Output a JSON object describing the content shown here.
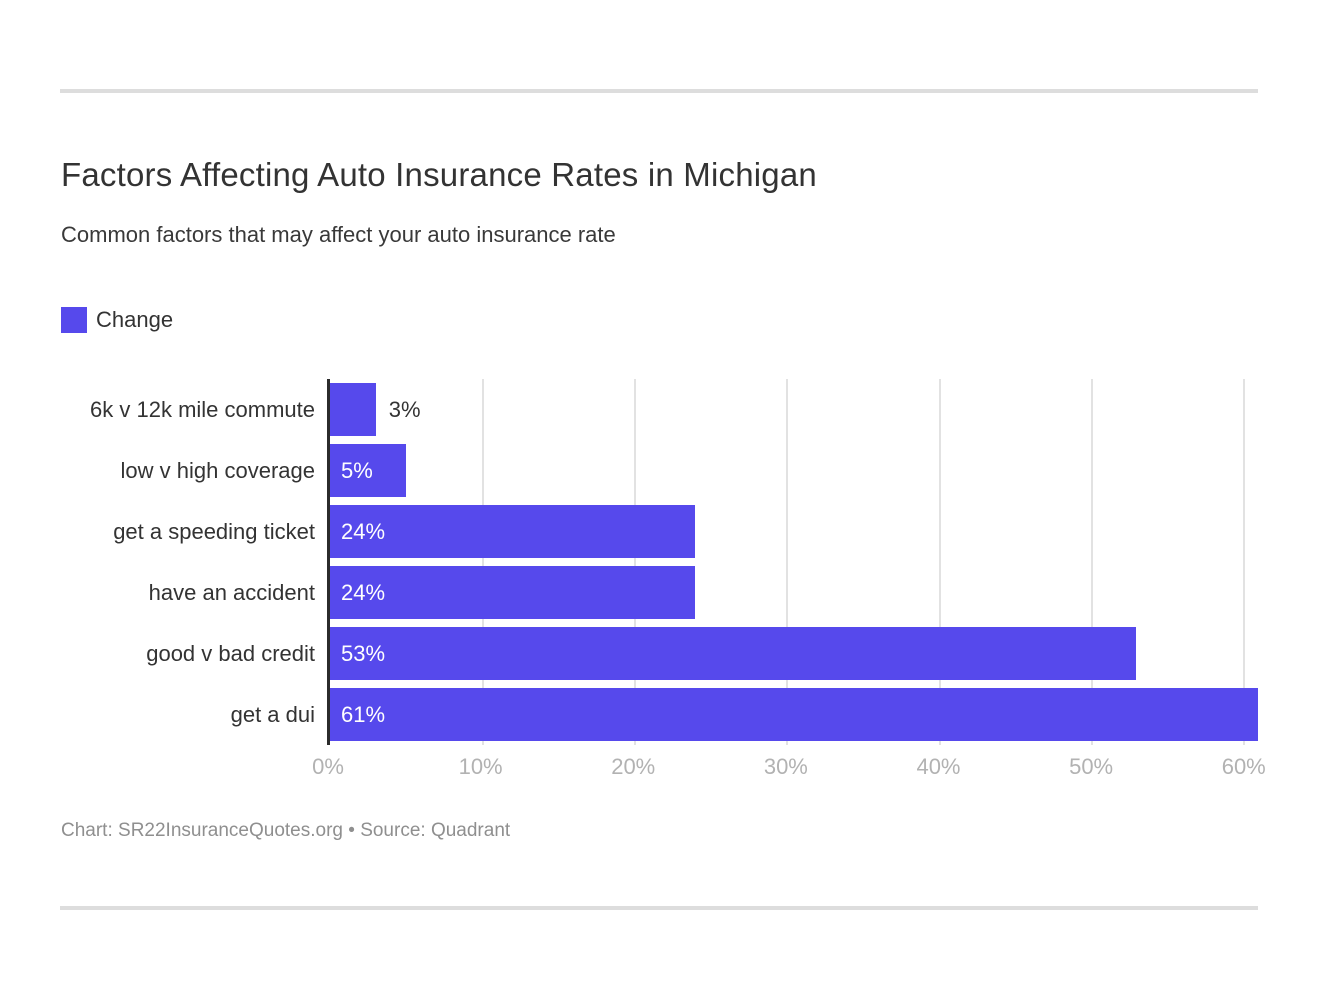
{
  "header": {
    "title": "Factors Affecting Auto Insurance Rates in Michigan",
    "subtitle": "Common factors that may affect your auto insurance rate"
  },
  "legend": {
    "label": "Change"
  },
  "colors": {
    "bar": "#5649ec",
    "axis_line": "#2b2b2b",
    "gridline": "#e2e2e2",
    "tick_text": "#b2b2b2",
    "divider": "#dddddd",
    "title_text": "#333333",
    "footer_text": "#8f8f8f"
  },
  "chart_data": {
    "type": "bar",
    "orientation": "horizontal",
    "title": "Factors Affecting Auto Insurance Rates in Michigan",
    "subtitle": "Common factors that may affect your auto insurance rate",
    "series_name": "Change",
    "categories": [
      "6k v 12k mile commute",
      "low v high coverage",
      "get a speeding ticket",
      "have an accident",
      "good v bad credit",
      "get a dui"
    ],
    "values": [
      3,
      5,
      24,
      24,
      53,
      61
    ],
    "value_labels": [
      "3%",
      "5%",
      "24%",
      "24%",
      "53%",
      "61%"
    ],
    "x_ticks": [
      "0%",
      "10%",
      "20%",
      "30%",
      "40%",
      "50%",
      "60%"
    ],
    "x_tick_values": [
      0,
      10,
      20,
      30,
      40,
      50,
      60
    ],
    "xlim": [
      0,
      61
    ],
    "grid": true,
    "legend_position": "top-left",
    "bar_color": "#5649ec"
  },
  "footer": {
    "text": "Chart: SR22InsuranceQuotes.org • Source: Quadrant"
  }
}
